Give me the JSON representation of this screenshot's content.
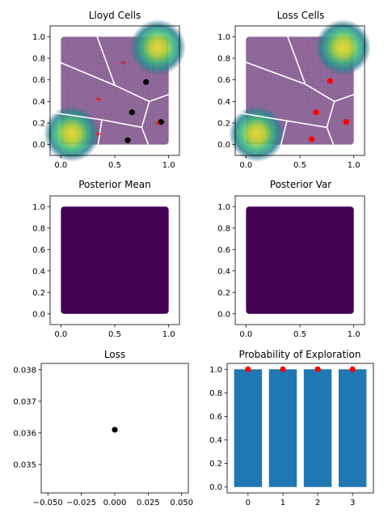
{
  "colors": {
    "viridis_low": "#440154",
    "viridis_high": "#fde725",
    "cell_boundary": "#ffffff",
    "point_black": "#000000",
    "point_red": "#ff0000",
    "bar": "#1f77b4"
  },
  "chart_data": [
    {
      "id": "lloyd",
      "type": "heatmap",
      "title": "Lloyd Cells",
      "xlim": [
        -0.1,
        1.1
      ],
      "ylim": [
        -0.1,
        1.1
      ],
      "xticks": [
        "0.0",
        "0.5",
        "1.0"
      ],
      "yticks": [
        "0.0",
        "0.2",
        "0.4",
        "0.6",
        "0.8",
        "1.0"
      ],
      "xtick_values": [
        0,
        0.5,
        1
      ],
      "ytick_values": [
        0,
        0.2,
        0.4,
        0.6,
        0.8,
        1
      ],
      "field_peaks": [
        [
          0.1,
          0.1
        ],
        [
          0.9,
          0.9
        ]
      ],
      "cell_edges": [
        [
          [
            -0.1,
            0.8
          ],
          [
            0.5,
            0.55
          ],
          [
            0.82,
            0.4
          ],
          [
            1.1,
            0.5
          ]
        ],
        [
          [
            0.5,
            0.55
          ],
          [
            0.3,
            1.1
          ]
        ],
        [
          [
            -0.1,
            0.3
          ],
          [
            0.38,
            0.23
          ],
          [
            0.75,
            0.16
          ],
          [
            0.82,
            0.4
          ]
        ],
        [
          [
            0.38,
            0.23
          ],
          [
            0.33,
            -0.1
          ]
        ],
        [
          [
            0.75,
            0.16
          ],
          [
            0.85,
            -0.1
          ]
        ]
      ],
      "points_black": [
        [
          0.79,
          0.58
        ],
        [
          0.66,
          0.3
        ],
        [
          0.93,
          0.21
        ],
        [
          0.62,
          0.04
        ]
      ],
      "points_plus": [
        [
          0.58,
          0.76
        ],
        [
          0.35,
          0.42
        ],
        [
          0.35,
          0.1
        ],
        [
          0.9,
          0.2
        ]
      ]
    },
    {
      "id": "loss",
      "type": "heatmap",
      "title": "Loss Cells",
      "xlim": [
        -0.1,
        1.1
      ],
      "ylim": [
        -0.1,
        1.1
      ],
      "xticks": [
        "0.0",
        "0.5",
        "1.0"
      ],
      "yticks": [
        "0.0",
        "0.2",
        "0.4",
        "0.6",
        "0.8",
        "1.0"
      ],
      "xtick_values": [
        0,
        0.5,
        1
      ],
      "ytick_values": [
        0,
        0.2,
        0.4,
        0.6,
        0.8,
        1
      ],
      "field_peaks": [
        [
          0.1,
          0.1
        ],
        [
          0.9,
          0.9
        ]
      ],
      "cell_edges": [
        [
          [
            -0.1,
            0.8
          ],
          [
            0.55,
            0.56
          ],
          [
            0.82,
            0.4
          ],
          [
            1.1,
            0.5
          ]
        ],
        [
          [
            0.55,
            0.56
          ],
          [
            0.35,
            1.1
          ]
        ],
        [
          [
            -0.1,
            0.3
          ],
          [
            0.38,
            0.22
          ],
          [
            0.75,
            0.16
          ],
          [
            0.82,
            0.4
          ]
        ],
        [
          [
            0.38,
            0.22
          ],
          [
            0.3,
            -0.1
          ]
        ],
        [
          [
            0.75,
            0.16
          ],
          [
            0.85,
            -0.1
          ]
        ]
      ],
      "points_red": [
        [
          0.78,
          0.59
        ],
        [
          0.65,
          0.3
        ],
        [
          0.93,
          0.21
        ],
        [
          0.61,
          0.05
        ]
      ]
    },
    {
      "id": "posterior_mean",
      "type": "heatmap",
      "title": "Posterior Mean",
      "xlim": [
        -0.1,
        1.1
      ],
      "ylim": [
        -0.1,
        1.1
      ],
      "xticks": [
        "0.0",
        "0.5",
        "1.0"
      ],
      "yticks": [
        "0.0",
        "0.2",
        "0.4",
        "0.6",
        "0.8",
        "1.0"
      ],
      "xtick_values": [
        0,
        0.5,
        1
      ],
      "ytick_values": [
        0,
        0.2,
        0.4,
        0.6,
        0.8,
        1
      ],
      "fill": "#440154"
    },
    {
      "id": "posterior_var",
      "type": "heatmap",
      "title": "Posterior Var",
      "xlim": [
        -0.1,
        1.1
      ],
      "ylim": [
        -0.1,
        1.1
      ],
      "xticks": [
        "0.0",
        "0.5",
        "1.0"
      ],
      "yticks": [
        "0.0",
        "0.2",
        "0.4",
        "0.6",
        "0.8",
        "1.0"
      ],
      "xtick_values": [
        0,
        0.5,
        1
      ],
      "ytick_values": [
        0,
        0.2,
        0.4,
        0.6,
        0.8,
        1
      ],
      "fill": "#440154"
    },
    {
      "id": "loss_scatter",
      "type": "scatter",
      "title": "Loss",
      "xlim": [
        -0.055,
        0.055
      ],
      "ylim": [
        0.0341,
        0.0382
      ],
      "xticks": [
        "−0.050",
        "−0.025",
        "0.000",
        "0.025",
        "0.050"
      ],
      "xtick_values": [
        -0.05,
        -0.025,
        0,
        0.025,
        0.05
      ],
      "yticks": [
        "0.035",
        "0.036",
        "0.037",
        "0.038"
      ],
      "ytick_values": [
        0.035,
        0.036,
        0.037,
        0.038
      ],
      "points": [
        [
          0.0,
          0.0361
        ]
      ]
    },
    {
      "id": "exploration",
      "type": "bar",
      "title": "Probability of Exploration",
      "categories": [
        "0",
        "1",
        "2",
        "3"
      ],
      "values": [
        1.0,
        1.0,
        1.0,
        1.0
      ],
      "markers": [
        1.0,
        1.0,
        1.0,
        1.0
      ],
      "ylim": [
        -0.05,
        1.05
      ],
      "yticks": [
        "0.0",
        "0.2",
        "0.4",
        "0.6",
        "0.8",
        "1.0"
      ],
      "ytick_values": [
        0,
        0.2,
        0.4,
        0.6,
        0.8,
        1
      ]
    }
  ]
}
